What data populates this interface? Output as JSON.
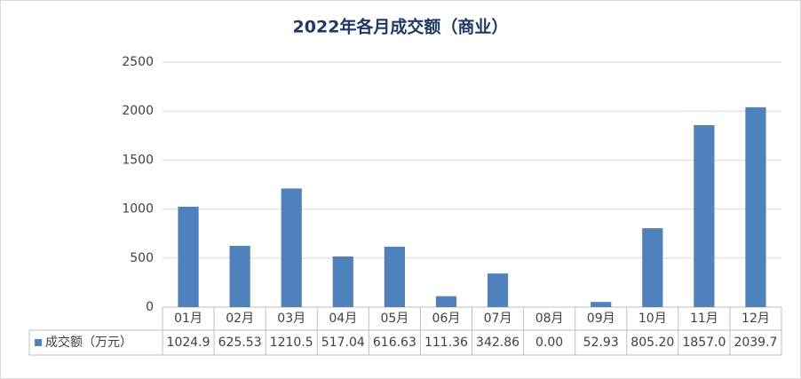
{
  "chart_data": {
    "type": "bar",
    "title": "2022年各月成交额（商业）",
    "categories": [
      "01月",
      "02月",
      "03月",
      "04月",
      "05月",
      "06月",
      "07月",
      "08月",
      "09月",
      "10月",
      "11月",
      "12月"
    ],
    "series": [
      {
        "name": "成交额（万元）",
        "color": "#4f81bd",
        "values": [
          1024.9,
          625.53,
          1210.5,
          517.04,
          616.63,
          111.36,
          342.86,
          0,
          52.93,
          805.2,
          1857,
          2039.7
        ],
        "value_labels": [
          "1024.9",
          "625.53",
          "1210.5",
          "517.04",
          "616.63",
          "111.36",
          "342.86",
          "0.00",
          "52.93",
          "805.20",
          "1857.0",
          "2039.7"
        ]
      }
    ],
    "ylim": [
      0,
      2500
    ],
    "yticks": [
      0,
      500,
      1000,
      1500,
      2000,
      2500
    ],
    "grid": true
  }
}
